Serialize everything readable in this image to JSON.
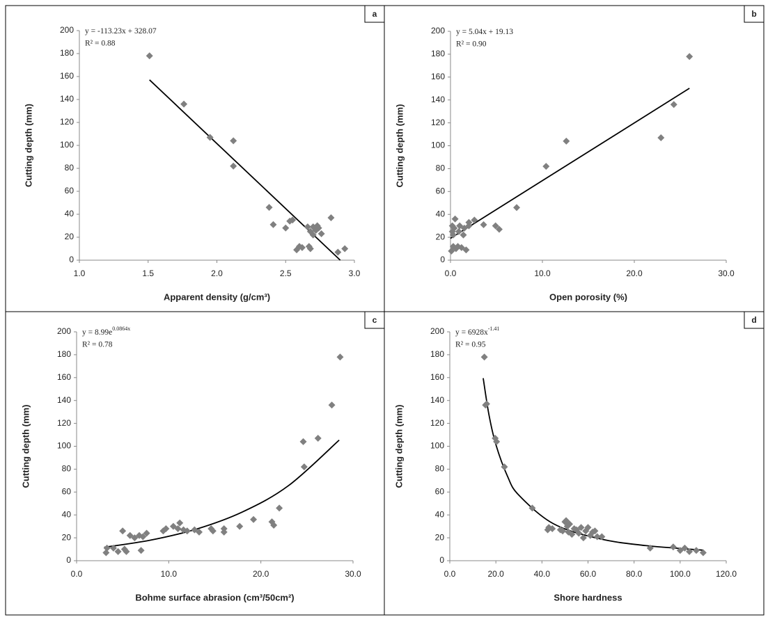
{
  "chart_data": [
    {
      "type": "scatter",
      "panel": "a",
      "equation": "y = -113.23x + 328.07",
      "r2": "R² = 0.88",
      "x_label": "Apparent density (g/cm³)",
      "y_label": "Cutting depth (mm)",
      "color": "#808080",
      "x": [
        1.51,
        1.76,
        1.95,
        2.12,
        2.12,
        2.38,
        2.41,
        2.5,
        2.53,
        2.55,
        2.58,
        2.6,
        2.62,
        2.66,
        2.67,
        2.68,
        2.68,
        2.7,
        2.7,
        2.72,
        2.73,
        2.74,
        2.76,
        2.83,
        2.88,
        2.93
      ],
      "values": [
        178,
        136,
        107,
        104,
        82,
        46,
        31,
        28,
        34,
        35,
        9,
        12,
        11,
        29,
        12,
        10,
        25,
        22,
        29,
        26,
        30,
        28,
        23,
        37,
        7,
        10
      ],
      "trendline": {
        "x": [
          1.51,
          2.897
        ],
        "values": [
          157.1,
          0
        ]
      },
      "xlim": [
        1,
        3
      ],
      "xticks": [
        {
          "value": 1,
          "label": "1.0"
        },
        {
          "value": 1.5,
          "label": "1.5"
        },
        {
          "value": 2,
          "label": "2.0"
        },
        {
          "value": 2.5,
          "label": "2.5"
        },
        {
          "value": 3,
          "label": "3.0"
        }
      ],
      "ylim": [
        0,
        200
      ],
      "yticks": [
        0,
        20,
        40,
        60,
        80,
        100,
        120,
        140,
        160,
        180,
        200
      ]
    },
    {
      "type": "scatter",
      "panel": "b",
      "equation": "y = 5.04x + 19.13",
      "r2": "R² = 0.90",
      "x_label": "Open porosity (%)",
      "y_label": "Cutting depth (mm)",
      "color": "#808080",
      "x": [
        0.1,
        0.2,
        0.2,
        0.3,
        0.4,
        0.5,
        0.6,
        0.8,
        0.9,
        1.0,
        1.2,
        1.4,
        1.5,
        1.7,
        2.0,
        2.0,
        2.6,
        3.6,
        4.9,
        5.3,
        7.2,
        10.4,
        12.6,
        22.9,
        24.3,
        26.0,
        0.3
      ],
      "values": [
        8,
        25,
        30,
        22,
        28,
        36,
        10,
        12,
        25,
        30,
        11,
        22,
        28,
        9,
        30,
        33,
        35,
        31,
        30,
        27,
        46,
        82,
        104,
        107,
        136,
        178,
        12
      ],
      "trendline": {
        "x": [
          0,
          26
        ],
        "values": [
          19.1,
          150.2
        ]
      },
      "xlim": [
        0,
        30
      ],
      "xticks": [
        {
          "value": 0,
          "label": "0.0"
        },
        {
          "value": 10,
          "label": "10.0"
        },
        {
          "value": 20,
          "label": "20.0"
        },
        {
          "value": 30,
          "label": "30.0"
        }
      ],
      "ylim": [
        0,
        200
      ],
      "yticks": [
        0,
        20,
        40,
        60,
        80,
        100,
        120,
        140,
        160,
        180,
        200
      ]
    },
    {
      "type": "scatter",
      "panel": "c",
      "equation": "y = 8.99e",
      "equation_exponent": "0.0864x",
      "r2": "R² = 0.78",
      "x_label": "Bohme surface abrasion (cm³/50cm²)",
      "y_label": "Cutting depth (mm)",
      "color": "#808080",
      "x": [
        3.2,
        3.3,
        4.0,
        4.5,
        5.0,
        5.2,
        5.4,
        5.8,
        6.3,
        6.8,
        7.0,
        7.2,
        7.6,
        9.4,
        9.7,
        10.5,
        11.0,
        11.2,
        11.6,
        12.0,
        12.8,
        13.3,
        14.6,
        14.8,
        16.0,
        16.0,
        17.7,
        19.2,
        21.2,
        21.4,
        22.0,
        24.6,
        24.7,
        26.2,
        27.7,
        28.6
      ],
      "values": [
        7,
        11,
        11,
        8,
        26,
        10,
        8,
        22,
        20,
        22,
        9,
        21,
        24,
        26,
        28,
        30,
        28,
        33,
        27,
        26,
        27,
        25,
        28,
        26,
        25,
        28,
        30,
        36,
        34,
        31,
        46,
        104,
        82,
        107,
        136,
        178
      ],
      "trendline": {
        "x": [
          3,
          8,
          13,
          18,
          23,
          28.5
        ],
        "values": [
          11.7,
          17.9,
          27.6,
          42.6,
          65.6,
          105.4
        ]
      },
      "xlim": [
        0,
        30
      ],
      "xticks": [
        {
          "value": 0,
          "label": "0.0"
        },
        {
          "value": 10,
          "label": "10.0"
        },
        {
          "value": 20,
          "label": "20.0"
        },
        {
          "value": 30,
          "label": "30.0"
        }
      ],
      "ylim": [
        0,
        200
      ],
      "yticks": [
        0,
        20,
        40,
        60,
        80,
        100,
        120,
        140,
        160,
        180,
        200
      ]
    },
    {
      "type": "scatter",
      "panel": "d",
      "equation": "y = 6928x",
      "equation_exponent": "-1.41",
      "r2": "R² = 0.95",
      "x_label": "Shore hardness",
      "y_label": "Cutting depth (mm)",
      "color": "#808080",
      "x": [
        15,
        15.5,
        16,
        19.7,
        20.3,
        23.7,
        35.8,
        42.5,
        43,
        44.5,
        48,
        49,
        50,
        50.5,
        51,
        51.5,
        52,
        53,
        54,
        55,
        56,
        57,
        58,
        59,
        60,
        61,
        62,
        63,
        64,
        66,
        87,
        97,
        100,
        102,
        104,
        107,
        110
      ],
      "values": [
        178,
        136,
        137,
        107,
        104,
        82,
        46,
        27,
        29,
        28,
        27,
        26,
        34,
        35,
        30,
        25,
        32,
        23,
        28,
        27,
        24,
        29,
        20,
        26,
        29,
        22,
        25,
        26,
        21,
        21,
        11,
        12,
        9,
        11,
        8,
        9,
        7
      ],
      "trendline": {
        "x": [
          14.5,
          17,
          20,
          25,
          30,
          45,
          65,
          85,
          110
        ],
        "values": [
          159.5,
          127.5,
          101.5,
          74.0,
          57.2,
          32.3,
          19.2,
          13.2,
          9.2
        ]
      },
      "xlim": [
        0,
        120
      ],
      "xticks": [
        {
          "value": 0,
          "label": "0.0"
        },
        {
          "value": 20,
          "label": "20.0"
        },
        {
          "value": 40,
          "label": "40.0"
        },
        {
          "value": 60,
          "label": "60.0"
        },
        {
          "value": 80,
          "label": "80.0"
        },
        {
          "value": 100,
          "label": "100.0"
        },
        {
          "value": 120,
          "label": "120.0"
        }
      ],
      "ylim": [
        0,
        200
      ],
      "yticks": [
        0,
        20,
        40,
        60,
        80,
        100,
        120,
        140,
        160,
        180,
        200
      ]
    }
  ]
}
